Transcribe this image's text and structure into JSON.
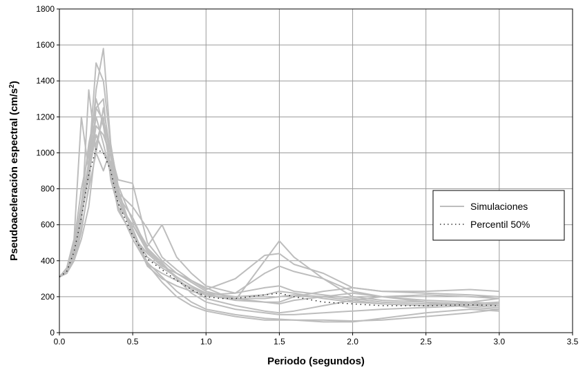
{
  "chart_data": {
    "type": "line",
    "title": "",
    "xlabel": "Periodo (segundos)",
    "ylabel_main": "Pseudoaceleración espectral (cm/s",
    "ylabel_sup": "2",
    "ylabel_end": ")",
    "xlim": [
      0,
      3.5
    ],
    "ylim": [
      0,
      1800
    ],
    "xticks": [
      0,
      0.5,
      1,
      1.5,
      2,
      2.5,
      3,
      3.5
    ],
    "xtick_labels": [
      "0.0",
      "0.5",
      "1.0",
      "1.5",
      "2.0",
      "2.5",
      "3.0",
      "3.5"
    ],
    "yticks": [
      0,
      200,
      400,
      600,
      800,
      1000,
      1200,
      1400,
      1600,
      1800
    ],
    "ytick_labels": [
      "0",
      "200",
      "400",
      "600",
      "800",
      "1000",
      "1200",
      "1400",
      "1600",
      "1800"
    ],
    "grid": true,
    "legend": {
      "position": "right",
      "entries": [
        {
          "name": "Simulaciones",
          "color": "#bdbdbd",
          "style": "solid"
        },
        {
          "name": "Percentil 50%",
          "color": "#333333",
          "style": "dotted"
        }
      ]
    },
    "colors": {
      "simulations": "#bdbdbd",
      "percentile": "#222222"
    },
    "series": [
      {
        "x": [
          0,
          0.05,
          0.1,
          0.15,
          0.2,
          0.25,
          0.3,
          0.35,
          0.4,
          0.5,
          0.6,
          0.7,
          0.8,
          0.9,
          1.0,
          1.2,
          1.4,
          1.5,
          1.6,
          1.8,
          2.0,
          2.2,
          2.5,
          2.8,
          3.0
        ],
        "y": [
          310,
          340,
          450,
          650,
          900,
          1350,
          1580,
          1050,
          800,
          550,
          420,
          360,
          310,
          260,
          220,
          200,
          210,
          230,
          220,
          190,
          170,
          160,
          150,
          160,
          170
        ]
      },
      {
        "x": [
          0,
          0.05,
          0.1,
          0.15,
          0.2,
          0.25,
          0.3,
          0.35,
          0.4,
          0.5,
          0.6,
          0.7,
          0.8,
          0.9,
          1.0,
          1.2,
          1.4,
          1.5,
          1.6,
          1.8,
          2.0,
          2.2,
          2.5,
          2.8,
          3.0
        ],
        "y": [
          310,
          360,
          520,
          1200,
          900,
          1100,
          1000,
          950,
          700,
          600,
          450,
          380,
          300,
          240,
          190,
          150,
          120,
          110,
          120,
          150,
          180,
          200,
          210,
          200,
          190
        ]
      },
      {
        "x": [
          0,
          0.05,
          0.1,
          0.15,
          0.2,
          0.25,
          0.3,
          0.35,
          0.4,
          0.5,
          0.6,
          0.7,
          0.8,
          0.9,
          1.0,
          1.2,
          1.4,
          1.5,
          1.6,
          1.8,
          2.0,
          2.2,
          2.5,
          2.8,
          3.0
        ],
        "y": [
          310,
          330,
          430,
          620,
          1350,
          1000,
          1250,
          1000,
          850,
          830,
          500,
          400,
          330,
          280,
          230,
          190,
          170,
          160,
          180,
          200,
          220,
          200,
          180,
          170,
          160
        ]
      },
      {
        "x": [
          0,
          0.05,
          0.1,
          0.15,
          0.2,
          0.25,
          0.3,
          0.35,
          0.4,
          0.5,
          0.6,
          0.7,
          0.8,
          0.9,
          1.0,
          1.2,
          1.4,
          1.5,
          1.6,
          1.8,
          2.0,
          2.2,
          2.5,
          2.8,
          3.0
        ],
        "y": [
          310,
          340,
          460,
          700,
          950,
          1500,
          1400,
          1040,
          820,
          620,
          480,
          600,
          420,
          330,
          260,
          220,
          250,
          260,
          230,
          210,
          190,
          170,
          160,
          150,
          140
        ]
      },
      {
        "x": [
          0,
          0.05,
          0.1,
          0.15,
          0.2,
          0.25,
          0.3,
          0.35,
          0.4,
          0.5,
          0.6,
          0.7,
          0.8,
          0.9,
          1.0,
          1.2,
          1.4,
          1.5,
          1.6,
          1.8,
          2.0,
          2.2,
          2.5,
          2.8,
          3.0
        ],
        "y": [
          310,
          330,
          400,
          560,
          820,
          1250,
          1300,
          900,
          750,
          580,
          380,
          330,
          290,
          250,
          210,
          180,
          400,
          510,
          420,
          300,
          200,
          180,
          170,
          160,
          150
        ]
      },
      {
        "x": [
          0,
          0.05,
          0.1,
          0.15,
          0.2,
          0.25,
          0.3,
          0.35,
          0.4,
          0.5,
          0.6,
          0.7,
          0.8,
          0.9,
          1.0,
          1.2,
          1.4,
          1.5,
          1.6,
          1.8,
          2.0,
          2.2,
          2.5,
          2.8,
          3.0
        ],
        "y": [
          310,
          330,
          410,
          580,
          800,
          1000,
          900,
          1020,
          780,
          560,
          390,
          310,
          230,
          170,
          130,
          100,
          80,
          75,
          70,
          70,
          65,
          70,
          90,
          110,
          130
        ]
      },
      {
        "x": [
          0,
          0.05,
          0.1,
          0.15,
          0.2,
          0.25,
          0.3,
          0.35,
          0.4,
          0.5,
          0.6,
          0.7,
          0.8,
          0.9,
          1.0,
          1.2,
          1.4,
          1.5,
          1.6,
          1.8,
          2.0,
          2.2,
          2.5,
          2.8,
          3.0
        ],
        "y": [
          310,
          350,
          480,
          720,
          1050,
          1250,
          1180,
          1000,
          780,
          700,
          580,
          420,
          350,
          290,
          240,
          300,
          430,
          440,
          380,
          330,
          250,
          230,
          230,
          240,
          230
        ]
      },
      {
        "x": [
          0,
          0.05,
          0.1,
          0.15,
          0.2,
          0.25,
          0.3,
          0.35,
          0.4,
          0.5,
          0.6,
          0.7,
          0.8,
          0.9,
          1.0,
          1.2,
          1.4,
          1.5,
          1.6,
          1.8,
          2.0,
          2.2,
          2.5,
          2.8,
          3.0
        ],
        "y": [
          310,
          340,
          440,
          640,
          880,
          1150,
          1100,
          980,
          760,
          640,
          460,
          380,
          310,
          260,
          210,
          220,
          330,
          370,
          340,
          300,
          230,
          200,
          170,
          140,
          130
        ]
      },
      {
        "x": [
          0,
          0.05,
          0.1,
          0.15,
          0.2,
          0.25,
          0.3,
          0.35,
          0.4,
          0.5,
          0.6,
          0.7,
          0.8,
          0.9,
          1.0,
          1.2,
          1.4,
          1.5,
          1.6,
          1.8,
          2.0,
          2.2,
          2.5,
          2.8,
          3.0
        ],
        "y": [
          310,
          330,
          400,
          520,
          700,
          1050,
          1200,
          850,
          700,
          520,
          380,
          280,
          200,
          150,
          120,
          90,
          70,
          70,
          70,
          60,
          60,
          80,
          110,
          130,
          120
        ]
      },
      {
        "x": [
          0,
          0.05,
          0.1,
          0.15,
          0.2,
          0.25,
          0.3,
          0.35,
          0.4,
          0.5,
          0.6,
          0.7,
          0.8,
          0.9,
          1.0,
          1.2,
          1.4,
          1.5,
          1.6,
          1.8,
          2.0,
          2.2,
          2.5,
          2.8,
          3.0
        ],
        "y": [
          310,
          350,
          500,
          800,
          1000,
          1300,
          1150,
          900,
          680,
          540,
          440,
          370,
          330,
          290,
          250,
          180,
          170,
          170,
          200,
          230,
          250,
          230,
          220,
          210,
          200
        ]
      },
      {
        "x": [
          0,
          0.05,
          0.1,
          0.15,
          0.2,
          0.25,
          0.3,
          0.35,
          0.4,
          0.5,
          0.6,
          0.7,
          0.8,
          0.9,
          1.0,
          1.2,
          1.4,
          1.5,
          1.6,
          1.8,
          2.0,
          2.2,
          2.5,
          2.8,
          3.0
        ],
        "y": [
          310,
          340,
          470,
          680,
          920,
          1200,
          1050,
          880,
          720,
          600,
          470,
          390,
          300,
          220,
          170,
          130,
          110,
          100,
          100,
          110,
          120,
          130,
          140,
          150,
          160
        ]
      },
      {
        "x": [
          0,
          0.05,
          0.1,
          0.15,
          0.2,
          0.25,
          0.3,
          0.35,
          0.4,
          0.5,
          0.6,
          0.7,
          0.8,
          0.9,
          1.0,
          1.2,
          1.4,
          1.5,
          1.6,
          1.8,
          2.0,
          2.2,
          2.5,
          2.8,
          3.0
        ],
        "y": [
          310,
          340,
          460,
          660,
          890,
          1100,
          1000,
          920,
          750,
          550,
          370,
          300,
          260,
          230,
          210,
          190,
          190,
          200,
          210,
          200,
          180,
          160,
          150,
          170,
          190
        ]
      }
    ],
    "percentile": {
      "x": [
        0,
        0.05,
        0.1,
        0.15,
        0.2,
        0.25,
        0.3,
        0.35,
        0.4,
        0.5,
        0.6,
        0.7,
        0.8,
        0.9,
        1.0,
        1.1,
        1.2,
        1.4,
        1.5,
        1.6,
        1.8,
        2.0,
        2.2,
        2.5,
        2.8,
        3.0
      ],
      "y": [
        310,
        340,
        450,
        640,
        880,
        1020,
        1000,
        900,
        720,
        540,
        410,
        350,
        290,
        240,
        200,
        190,
        190,
        210,
        220,
        200,
        170,
        160,
        150,
        150,
        155,
        150
      ]
    }
  }
}
